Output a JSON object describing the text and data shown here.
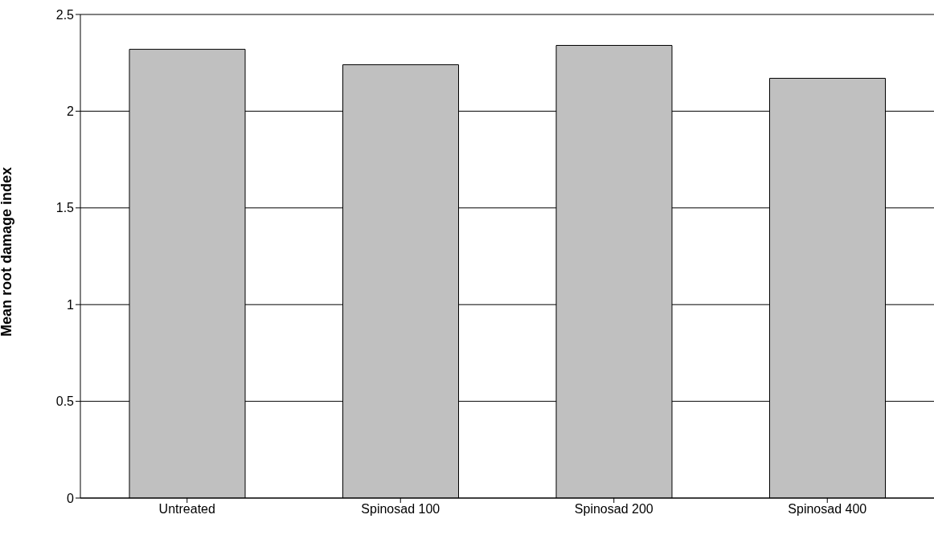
{
  "chart_data": {
    "type": "bar",
    "ylabel": "Mean root damage index",
    "categories": [
      "Untreated",
      "Spinosad 100",
      "Spinosad 200",
      "Spinosad 400"
    ],
    "values": [
      2.32,
      2.24,
      2.34,
      2.17
    ],
    "color": "#c0c0c0",
    "ylim": [
      0,
      2.5
    ],
    "yticks": [
      0,
      0.5,
      1,
      1.5,
      2,
      2.5
    ],
    "grid": "y",
    "legend": false
  }
}
